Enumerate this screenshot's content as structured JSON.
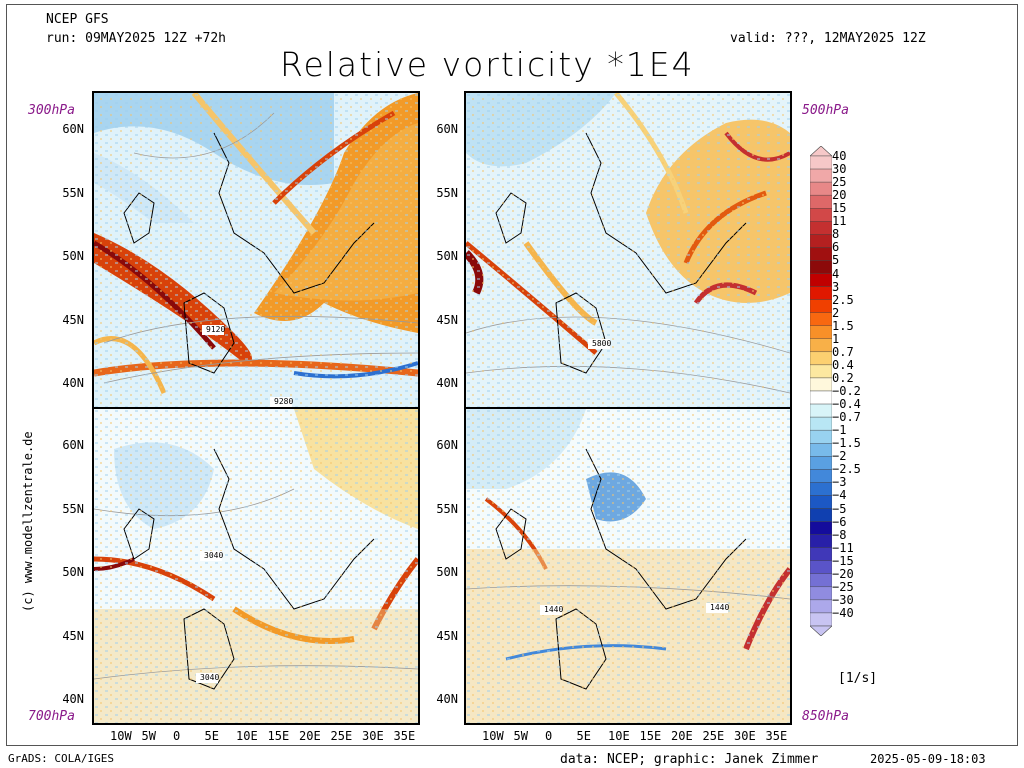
{
  "header": {
    "model": "NCEP GFS",
    "run": "run: 09MAY2025 12Z +72h",
    "valid": "valid: ???, 12MAY2025 12Z",
    "title": "Relative vorticity *1E4"
  },
  "panels": [
    {
      "level": "300hPa",
      "contour": [
        "9120",
        "9280"
      ]
    },
    {
      "level": "500hPa",
      "contour": [
        "5800"
      ]
    },
    {
      "level": "700hPa",
      "contour": [
        "3040",
        "3040"
      ]
    },
    {
      "level": "850hPa",
      "contour": [
        "1440",
        "1440"
      ]
    }
  ],
  "axes": {
    "lat_labels": [
      "60N",
      "55N",
      "50N",
      "45N",
      "40N"
    ],
    "lon_labels": [
      "10W",
      "5W",
      "0",
      "5E",
      "10E",
      "15E",
      "20E",
      "25E",
      "30E",
      "35E"
    ]
  },
  "colorbar": {
    "levels": [
      "40",
      "30",
      "25",
      "20",
      "15",
      "11",
      "8",
      "6",
      "5",
      "4",
      "3",
      "2.5",
      "2",
      "1.5",
      "1",
      "0.7",
      "0.4",
      "0.2",
      "−0.2",
      "−0.4",
      "−0.7",
      "−1",
      "−1.5",
      "−2",
      "−2.5",
      "−3",
      "−4",
      "−5",
      "−6",
      "−8",
      "−11",
      "−15",
      "−20",
      "−25",
      "−30",
      "−40"
    ],
    "colors": [
      "#f6c8c8",
      "#f0a8a8",
      "#e88888",
      "#de6868",
      "#d24848",
      "#c43030",
      "#b42020",
      "#a01010",
      "#8c0a0a",
      "#c00000",
      "#e01800",
      "#f04000",
      "#f86810",
      "#f89028",
      "#f8b048",
      "#fcd070",
      "#fce8a0",
      "#fff8dc",
      "#ffffff",
      "#d8f4f8",
      "#b8e6f4",
      "#98d2f0",
      "#78baea",
      "#5aa0e2",
      "#4288da",
      "#2c70d0",
      "#1c58c4",
      "#1040b0",
      "#140c9c",
      "#2820a8",
      "#4038b8",
      "#5a54c8",
      "#7470d4",
      "#908ce0",
      "#aca8ea",
      "#c8c4f2"
    ],
    "unit": "[1/s]"
  },
  "credits": {
    "side": "(c) www.modellzentrale.de",
    "software": "GrADS: COLA/IGES",
    "data": "data: NCEP; graphic: Janek Zimmer",
    "timestamp": "2025-05-09-18:03"
  }
}
